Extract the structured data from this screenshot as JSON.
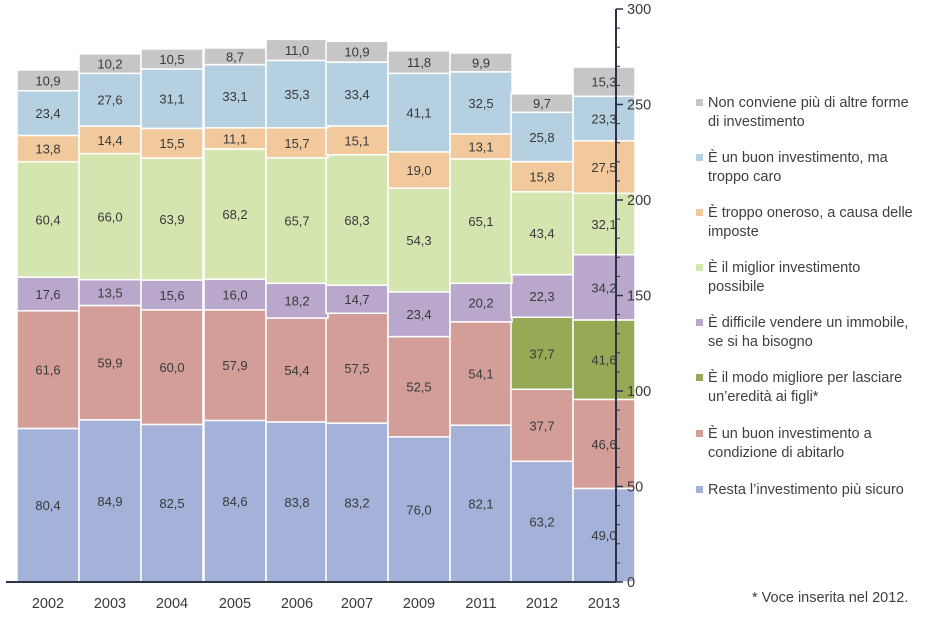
{
  "chart_data": {
    "type": "stacked-bar",
    "categories": [
      "2002",
      "2003",
      "2004",
      "2005",
      "2006",
      "2007",
      "2009",
      "2011",
      "2012",
      "2013"
    ],
    "ylim": [
      0,
      300
    ],
    "yticks": [
      "0",
      "50",
      "100",
      "150",
      "200",
      "250",
      "300"
    ],
    "y_axis_position": "right",
    "series": [
      {
        "name": "Resta l’investimento più sicuro",
        "color": "#a4b1d8",
        "values": [
          80.4,
          84.9,
          82.5,
          84.6,
          83.8,
          83.2,
          76.0,
          82.1,
          63.2,
          49.0
        ],
        "labels": [
          "80,4",
          "84,9",
          "82,5",
          "84,6",
          "83,8",
          "83,2",
          "76,0",
          "82,1",
          "63,2",
          "49,0"
        ]
      },
      {
        "name": "È un buon investimento a condizione di abitarlo",
        "color": "#d39e97",
        "values": [
          61.6,
          59.9,
          60.0,
          57.9,
          54.4,
          57.5,
          52.5,
          54.1,
          37.7,
          46.6
        ],
        "labels": [
          "61,6",
          "59,9",
          "60,0",
          "57,9",
          "54,4",
          "57,5",
          "52,5",
          "54,1",
          "37,7",
          "46,6"
        ]
      },
      {
        "name": "È il modo migliore per lasciare un’eredità ai figli*",
        "color": "#96a955",
        "values": [
          null,
          null,
          null,
          null,
          null,
          null,
          null,
          null,
          37.7,
          41.6
        ],
        "labels": [
          "",
          "",
          "",
          "",
          "",
          "",
          "",
          "",
          "37,7",
          "41,6"
        ]
      },
      {
        "name": "È difficile vendere un immobile, se si ha bisogno",
        "color": "#b9a8cb",
        "values": [
          17.6,
          13.5,
          15.6,
          16.0,
          18.2,
          14.7,
          23.4,
          20.2,
          22.3,
          34.2
        ],
        "labels": [
          "17,6",
          "13,5",
          "15,6",
          "16,0",
          "18,2",
          "14,7",
          "23,4",
          "20,2",
          "22,3",
          "34,2"
        ]
      },
      {
        "name": "È il miglior investimento possibile",
        "color": "#d4e5b0",
        "values": [
          60.4,
          66.0,
          63.9,
          68.2,
          65.7,
          68.3,
          54.3,
          65.1,
          43.4,
          32.1
        ],
        "labels": [
          "60,4",
          "66,0",
          "63,9",
          "68,2",
          "65,7",
          "68,3",
          "54,3",
          "65,1",
          "43,4",
          "32,1"
        ]
      },
      {
        "name": "È troppo oneroso, a causa delle imposte",
        "color": "#f2c99c",
        "values": [
          13.8,
          14.4,
          15.5,
          11.1,
          15.7,
          15.1,
          19.0,
          13.1,
          15.8,
          27.5
        ],
        "labels": [
          "13,8",
          "14,4",
          "15,5",
          "11,1",
          "15,7",
          "15,1",
          "19,0",
          "13,1",
          "15,8",
          "27,5"
        ]
      },
      {
        "name": "È un buon investimento, ma troppo caro",
        "color": "#b5d0e1",
        "values": [
          23.4,
          27.6,
          31.1,
          33.1,
          35.3,
          33.4,
          41.1,
          32.5,
          25.8,
          23.3
        ],
        "labels": [
          "23,4",
          "27,6",
          "31,1",
          "33,1",
          "35,3",
          "33,4",
          "41,1",
          "32,5",
          "25,8",
          "23,3"
        ]
      },
      {
        "name": "Non conviene più di altre forme di investimento",
        "color": "#c6c6c6",
        "values": [
          10.9,
          10.2,
          10.5,
          8.7,
          11.0,
          10.9,
          11.8,
          9.9,
          9.7,
          15.3
        ],
        "labels": [
          "10,9",
          "10,2",
          "10,5",
          "8,7",
          "11,0",
          "10,9",
          "11,8",
          "9,9",
          "9,7",
          "15,3"
        ]
      }
    ],
    "legend_order": [
      "Non conviene più di altre forme\ndi investimento",
      "È un buon investimento, ma\ntroppo caro",
      "È troppo oneroso, a causa delle\nimposte",
      "È il miglior investimento\npossibile",
      "È difficile vendere un immobile,\nse si ha bisogno",
      "È il modo migliore per lasciare\nun’eredità ai figli*",
      "È un buon investimento a\ncondizione di abitarlo",
      "Resta l’investimento più sicuro"
    ],
    "legend_colors": [
      "#c6c6c6",
      "#b5d0e1",
      "#f2c99c",
      "#d4e5b0",
      "#b9a8cb",
      "#96a955",
      "#d39e97",
      "#a4b1d8"
    ],
    "footnote": "* Voce inserita nel 2012."
  }
}
